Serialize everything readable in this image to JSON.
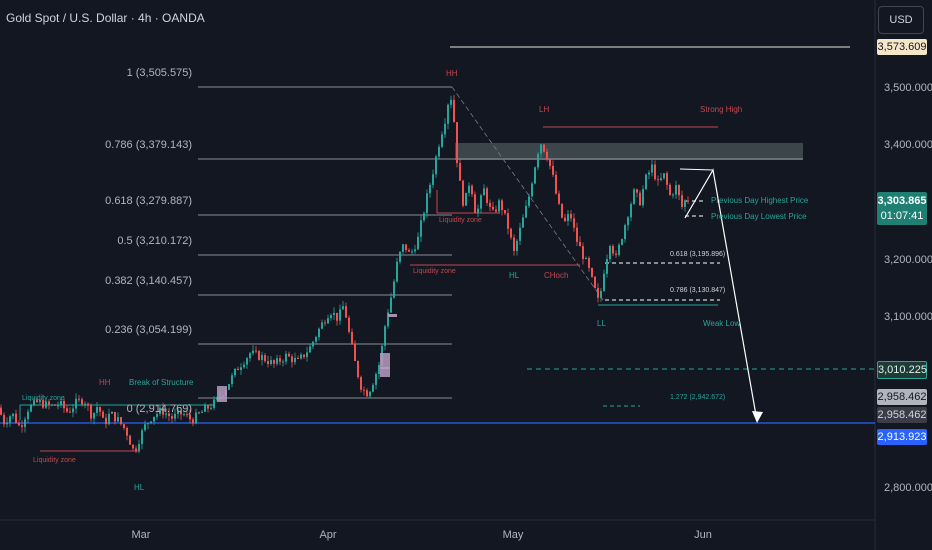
{
  "header": {
    "title": "Gold Spot / U.S. Dollar · 4h · OANDA",
    "currency_button": "USD"
  },
  "price_axis": {
    "ticks": [
      "3,500.000",
      "3,400.000",
      "3,300.000",
      "3,200.000",
      "3,100.000",
      "2,800.000"
    ],
    "badges": {
      "top": "3,573.609",
      "current_price": "3,303.865",
      "countdown": "01:07:41",
      "target": "3,010.225",
      "level_a": "2,958.462",
      "level_b": "2,958.462",
      "support": "2,913.923"
    }
  },
  "time_axis": {
    "ticks": [
      "Mar",
      "Apr",
      "May",
      "Jun"
    ]
  },
  "fib_levels": [
    {
      "label": "1 (3,505.575)"
    },
    {
      "label": "0.786 (3,379.143)"
    },
    {
      "label": "0.618 (3,279.887)"
    },
    {
      "label": "0.5 (3,210.172)"
    },
    {
      "label": "0.382 (3,140.457)"
    },
    {
      "label": "0.236 (3,054.199)"
    },
    {
      "label": "0 (2,914.769)"
    }
  ],
  "annotations": {
    "hh_top": "HH",
    "lh": "LH",
    "strong_high": "Strong High",
    "liquidity_zone_upper": "Liquidity zone",
    "liquidity_zone_mid": "Liquidity zone",
    "hl_mid": "HL",
    "choch": "CHoch",
    "ll": "LL",
    "weak_low": "Weak Low",
    "prev_high": "Previous Day Highest Price",
    "prev_low": "Previous Day Lowest Price",
    "fib618_small": "0.618 (3,195.896)",
    "fib786_small": "0.786 (3,130.847)",
    "fib1272": "1.272 (2,942.672)",
    "hh_left": "HH",
    "bos": "Break of Structure",
    "liquidity_zone_left_top": "Liquidity zone",
    "liquidity_zone_left_bottom": "Liquidity zone",
    "hl_bottom": "HL"
  },
  "colors": {
    "background": "#131722",
    "up": "#26a69a",
    "down": "#ef5350",
    "red_annot": "#c2474f",
    "green_annot": "#26a69a",
    "support_line": "#2962ff",
    "fib_line": "#b2b5be",
    "supply_zone": "#5d6b6b"
  },
  "chart_data": {
    "type": "candlestick",
    "title": "Gold Spot / U.S. Dollar · 4h · OANDA",
    "x_ticks": [
      "Mar",
      "Apr",
      "May",
      "Jun"
    ],
    "y_ticks": [
      3500,
      3400,
      3300,
      3200,
      3100,
      2800
    ],
    "ylim": [
      2760,
      3630
    ],
    "path_points": [
      {
        "t": 0,
        "p": 2940
      },
      {
        "t": 6,
        "p": 2915
      },
      {
        "t": 14,
        "p": 2930
      },
      {
        "t": 22,
        "p": 2905
      },
      {
        "t": 30,
        "p": 2938
      },
      {
        "t": 40,
        "p": 2950
      },
      {
        "t": 52,
        "p": 2942
      },
      {
        "t": 62,
        "p": 2946
      },
      {
        "t": 70,
        "p": 2932
      },
      {
        "t": 78,
        "p": 2948
      },
      {
        "t": 86,
        "p": 2955
      },
      {
        "t": 94,
        "p": 2925
      },
      {
        "t": 100,
        "p": 2945
      },
      {
        "t": 106,
        "p": 2910
      },
      {
        "t": 112,
        "p": 2930
      },
      {
        "t": 120,
        "p": 2918
      },
      {
        "t": 128,
        "p": 2900
      },
      {
        "t": 136,
        "p": 2862
      },
      {
        "t": 140,
        "p": 2880
      },
      {
        "t": 146,
        "p": 2905
      },
      {
        "t": 154,
        "p": 2925
      },
      {
        "t": 164,
        "p": 2935
      },
      {
        "t": 174,
        "p": 2922
      },
      {
        "t": 184,
        "p": 2930
      },
      {
        "t": 194,
        "p": 2918
      },
      {
        "t": 206,
        "p": 2935
      },
      {
        "t": 218,
        "p": 2950
      },
      {
        "t": 228,
        "p": 2975
      },
      {
        "t": 240,
        "p": 3010
      },
      {
        "t": 252,
        "p": 3035
      },
      {
        "t": 264,
        "p": 3028
      },
      {
        "t": 276,
        "p": 3015
      },
      {
        "t": 288,
        "p": 3030
      },
      {
        "t": 300,
        "p": 3020
      },
      {
        "t": 312,
        "p": 3045
      },
      {
        "t": 322,
        "p": 3080
      },
      {
        "t": 332,
        "p": 3110
      },
      {
        "t": 340,
        "p": 3095
      },
      {
        "t": 346,
        "p": 3120
      },
      {
        "t": 352,
        "p": 3060
      },
      {
        "t": 358,
        "p": 3010
      },
      {
        "t": 364,
        "p": 2972
      },
      {
        "t": 370,
        "p": 2965
      },
      {
        "t": 376,
        "p": 2990
      },
      {
        "t": 382,
        "p": 3020
      },
      {
        "t": 388,
        "p": 3095
      },
      {
        "t": 394,
        "p": 3140
      },
      {
        "t": 400,
        "p": 3200
      },
      {
        "t": 406,
        "p": 3225
      },
      {
        "t": 412,
        "p": 3205
      },
      {
        "t": 420,
        "p": 3235
      },
      {
        "t": 428,
        "p": 3300
      },
      {
        "t": 436,
        "p": 3360
      },
      {
        "t": 442,
        "p": 3410
      },
      {
        "t": 448,
        "p": 3450
      },
      {
        "t": 452,
        "p": 3495
      },
      {
        "t": 456,
        "p": 3440
      },
      {
        "t": 460,
        "p": 3350
      },
      {
        "t": 466,
        "p": 3290
      },
      {
        "t": 472,
        "p": 3340
      },
      {
        "t": 478,
        "p": 3275
      },
      {
        "t": 486,
        "p": 3320
      },
      {
        "t": 494,
        "p": 3275
      },
      {
        "t": 502,
        "p": 3300
      },
      {
        "t": 510,
        "p": 3255
      },
      {
        "t": 516,
        "p": 3210
      },
      {
        "t": 522,
        "p": 3250
      },
      {
        "t": 530,
        "p": 3300
      },
      {
        "t": 536,
        "p": 3355
      },
      {
        "t": 542,
        "p": 3405
      },
      {
        "t": 548,
        "p": 3385
      },
      {
        "t": 554,
        "p": 3350
      },
      {
        "t": 560,
        "p": 3295
      },
      {
        "t": 566,
        "p": 3260
      },
      {
        "t": 572,
        "p": 3280
      },
      {
        "t": 578,
        "p": 3235
      },
      {
        "t": 584,
        "p": 3210
      },
      {
        "t": 590,
        "p": 3185
      },
      {
        "t": 596,
        "p": 3150
      },
      {
        "t": 601,
        "p": 3120
      },
      {
        "t": 606,
        "p": 3180
      },
      {
        "t": 612,
        "p": 3230
      },
      {
        "t": 618,
        "p": 3200
      },
      {
        "t": 624,
        "p": 3240
      },
      {
        "t": 630,
        "p": 3280
      },
      {
        "t": 636,
        "p": 3315
      },
      {
        "t": 642,
        "p": 3300
      },
      {
        "t": 648,
        "p": 3340
      },
      {
        "t": 654,
        "p": 3360
      },
      {
        "t": 660,
        "p": 3330
      },
      {
        "t": 666,
        "p": 3345
      },
      {
        "t": 672,
        "p": 3310
      },
      {
        "t": 678,
        "p": 3325
      },
      {
        "t": 684,
        "p": 3290
      },
      {
        "t": 688,
        "p": 3304
      }
    ],
    "fib_retracement": [
      {
        "ratio": 1,
        "price": 3505.575
      },
      {
        "ratio": 0.786,
        "price": 3379.143
      },
      {
        "ratio": 0.618,
        "price": 3279.887
      },
      {
        "ratio": 0.5,
        "price": 3210.172
      },
      {
        "ratio": 0.382,
        "price": 3140.457
      },
      {
        "ratio": 0.236,
        "price": 3054.199
      },
      {
        "ratio": 0,
        "price": 2914.769
      }
    ],
    "projection_levels": [
      {
        "ratio": 0.618,
        "price": 3195.896
      },
      {
        "ratio": 0.786,
        "price": 3130.847
      },
      {
        "ratio": 1.272,
        "price": 2942.672
      }
    ],
    "horizontal_levels": [
      3573.609,
      3010.225,
      2958.462,
      2913.923
    ],
    "supply_zone": [
      3380,
      3408
    ],
    "last_price": 3303.865,
    "projected_path": [
      3304,
      3360,
      3200,
      2910
    ]
  }
}
